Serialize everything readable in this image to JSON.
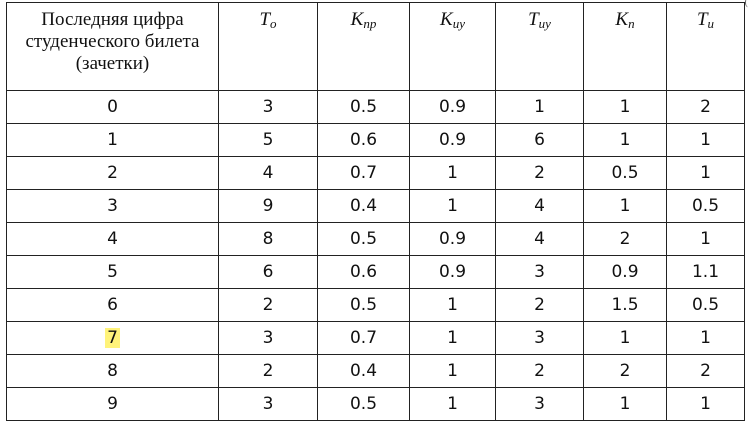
{
  "table": {
    "header": {
      "digit_col": "Последняя цифра студенческого билета (зачетки)",
      "params": [
        {
          "base": "T",
          "sub": "o"
        },
        {
          "base": "K",
          "sub": "пр"
        },
        {
          "base": "K",
          "sub": "иу"
        },
        {
          "base": "T",
          "sub": "иу"
        },
        {
          "base": "K",
          "sub": "п"
        },
        {
          "base": "T",
          "sub": "и"
        }
      ]
    },
    "rows": [
      {
        "digit": "0",
        "values": [
          "3",
          "0.5",
          "0.9",
          "1",
          "1",
          "2"
        ]
      },
      {
        "digit": "1",
        "values": [
          "5",
          "0.6",
          "0.9",
          "6",
          "1",
          "1"
        ]
      },
      {
        "digit": "2",
        "values": [
          "4",
          "0.7",
          "1",
          "2",
          "0.5",
          "1"
        ]
      },
      {
        "digit": "3",
        "values": [
          "9",
          "0.4",
          "1",
          "4",
          "1",
          "0.5"
        ]
      },
      {
        "digit": "4",
        "values": [
          "8",
          "0.5",
          "0.9",
          "4",
          "2",
          "1"
        ]
      },
      {
        "digit": "5",
        "values": [
          "6",
          "0.6",
          "0.9",
          "3",
          "0.9",
          "1.1"
        ]
      },
      {
        "digit": "6",
        "values": [
          "2",
          "0.5",
          "1",
          "2",
          "1.5",
          "0.5"
        ]
      },
      {
        "digit": "7",
        "values": [
          "3",
          "0.7",
          "1",
          "3",
          "1",
          "1"
        ],
        "highlighted": true
      },
      {
        "digit": "8",
        "values": [
          "2",
          "0.4",
          "1",
          "2",
          "2",
          "2"
        ]
      },
      {
        "digit": "9",
        "values": [
          "3",
          "0.5",
          "1",
          "3",
          "1",
          "1"
        ]
      }
    ],
    "highlight_color": "#fff37a"
  }
}
